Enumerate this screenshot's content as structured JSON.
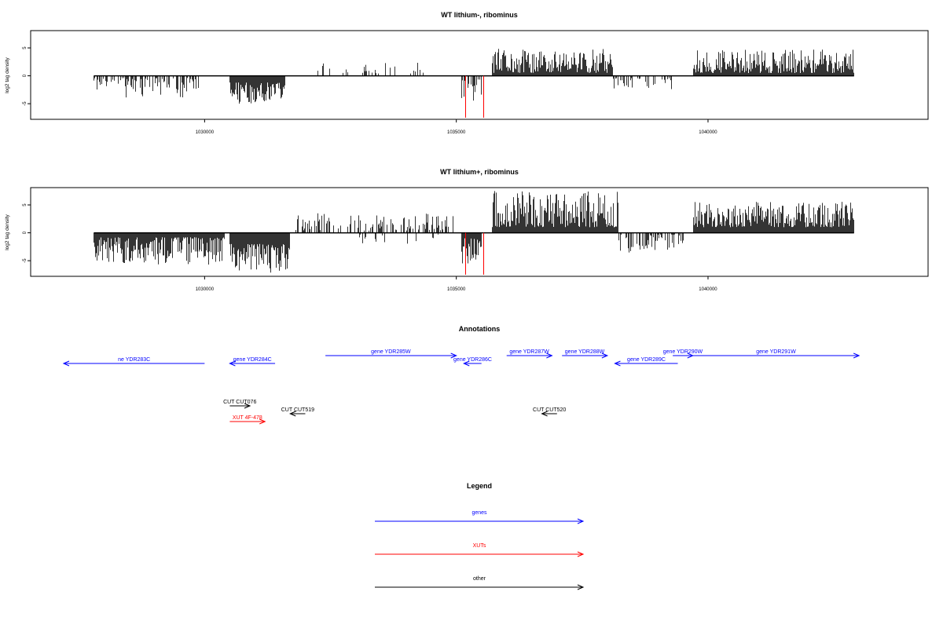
{
  "chart_data": [
    {
      "type": "bar",
      "title": "WT lithium-, ribominus",
      "ylabel": "log2 tag density",
      "xlim": [
        1027200,
        1043700
      ],
      "ylim": [
        -7.8,
        8.1
      ],
      "xticks": [
        1030000,
        1035000,
        1040000
      ],
      "yticks": [
        -5,
        0,
        5
      ],
      "grid": false,
      "regions": [
        {
          "from": 1027800,
          "to": 1029900,
          "sign": -1,
          "min": 0.4,
          "max": 3.9,
          "density": 0.5
        },
        {
          "from": 1030500,
          "to": 1031600,
          "sign": -1,
          "min": 1.2,
          "max": 5.0,
          "density": 1.3
        },
        {
          "from": 1032200,
          "to": 1034400,
          "sign": 1,
          "min": 0.4,
          "max": 2.4,
          "density": 0.25
        },
        {
          "from": 1035100,
          "to": 1035500,
          "sign": -1,
          "min": 0.6,
          "max": 4.5,
          "density": 0.8
        },
        {
          "from": 1035700,
          "to": 1038100,
          "sign": 1,
          "min": 0.5,
          "max": 4.9,
          "density": 1.2
        },
        {
          "from": 1038100,
          "to": 1039300,
          "sign": -1,
          "min": 0.4,
          "max": 2.4,
          "density": 0.4
        },
        {
          "from": 1039700,
          "to": 1042900,
          "sign": 1,
          "min": 0.5,
          "max": 4.7,
          "density": 1.2
        }
      ],
      "highlights": [
        {
          "x": 1035180,
          "y": -7.5,
          "color": "#ff0000"
        },
        {
          "x": 1035540,
          "y": -7.5,
          "color": "#ff0000"
        }
      ],
      "bar_color": "#000000"
    },
    {
      "type": "bar",
      "title": "WT lithium+, ribominus",
      "ylabel": "log2 tag density",
      "xlim": [
        1027200,
        1043700
      ],
      "ylim": [
        -7.8,
        8.1
      ],
      "xticks": [
        1030000,
        1035000,
        1040000
      ],
      "yticks": [
        -5,
        0,
        5
      ],
      "grid": false,
      "regions": [
        {
          "from": 1027800,
          "to": 1030400,
          "sign": -1,
          "min": 0.8,
          "max": 5.7,
          "density": 1.8
        },
        {
          "from": 1030500,
          "to": 1031700,
          "sign": -1,
          "min": 2.0,
          "max": 7.2,
          "density": 2.5
        },
        {
          "from": 1031800,
          "to": 1035000,
          "sign": 1,
          "min": 0.4,
          "max": 3.5,
          "density": 0.4
        },
        {
          "from": 1033000,
          "to": 1034700,
          "sign": -1,
          "min": 0.3,
          "max": 2.0,
          "density": 0.12
        },
        {
          "from": 1035100,
          "to": 1035500,
          "sign": -1,
          "min": 1.0,
          "max": 6.2,
          "density": 1.2
        },
        {
          "from": 1035700,
          "to": 1038200,
          "sign": 1,
          "min": 1.0,
          "max": 7.6,
          "density": 2.5
        },
        {
          "from": 1038200,
          "to": 1039500,
          "sign": -1,
          "min": 0.3,
          "max": 3.8,
          "density": 0.5
        },
        {
          "from": 1039700,
          "to": 1042900,
          "sign": 1,
          "min": 1.0,
          "max": 5.6,
          "density": 2.3
        }
      ],
      "highlights": [
        {
          "x": 1035180,
          "y": -7.5,
          "color": "#ff0000"
        },
        {
          "x": 1035540,
          "y": -7.5,
          "color": "#ff0000"
        }
      ],
      "bar_color": "#000000"
    },
    {
      "type": "annotation_track",
      "title": "Annotations",
      "features": [
        {
          "label": "ne YDR283C",
          "from": 1027200,
          "to": 1030000,
          "strand": "-",
          "row": 1,
          "color": "#0000ff"
        },
        {
          "label": "gene YDR284C",
          "from": 1030500,
          "to": 1031400,
          "strand": "-",
          "row": 1,
          "color": "#0000ff"
        },
        {
          "label": "gene YDR285W",
          "from": 1032400,
          "to": 1035000,
          "strand": "+",
          "row": 0,
          "color": "#0000ff"
        },
        {
          "label": "gene YDR286C",
          "from": 1035150,
          "to": 1035500,
          "strand": "-",
          "row": 1,
          "color": "#0000ff"
        },
        {
          "label": "gene YDR287W",
          "from": 1036000,
          "to": 1036900,
          "strand": "+",
          "row": 0,
          "color": "#0000ff"
        },
        {
          "label": "gene YDR288W",
          "from": 1037100,
          "to": 1038000,
          "strand": "+",
          "row": 0,
          "color": "#0000ff"
        },
        {
          "label": "gene YDR289C",
          "from": 1038150,
          "to": 1039400,
          "strand": "-",
          "row": 1,
          "color": "#0000ff"
        },
        {
          "label": "gene YDR290W",
          "from": 1039300,
          "to": 1039700,
          "strand": "+",
          "row": 0,
          "color": "#0000ff"
        },
        {
          "label": "gene YDR291W",
          "from": 1039700,
          "to": 1043000,
          "strand": "+",
          "row": 0,
          "color": "#0000ff"
        },
        {
          "label": "CUT CUT076",
          "from": 1030500,
          "to": 1030900,
          "strand": "+",
          "row": 2,
          "color": "#000000"
        },
        {
          "label": "CUT CUT519",
          "from": 1031700,
          "to": 1032000,
          "strand": "-",
          "row": 3,
          "color": "#000000"
        },
        {
          "label": "CUT CUT520",
          "from": 1036700,
          "to": 1037000,
          "strand": "-",
          "row": 3,
          "color": "#000000"
        },
        {
          "label": "XUT 4F-478",
          "from": 1030500,
          "to": 1031200,
          "strand": "+",
          "row": 4,
          "color": "#ff0000"
        }
      ]
    },
    {
      "type": "legend",
      "title": "Legend",
      "entries": [
        {
          "label": "genes",
          "color": "#0000ff"
        },
        {
          "label": "XUTs",
          "color": "#ff0000"
        },
        {
          "label": "other",
          "color": "#000000"
        }
      ]
    }
  ]
}
